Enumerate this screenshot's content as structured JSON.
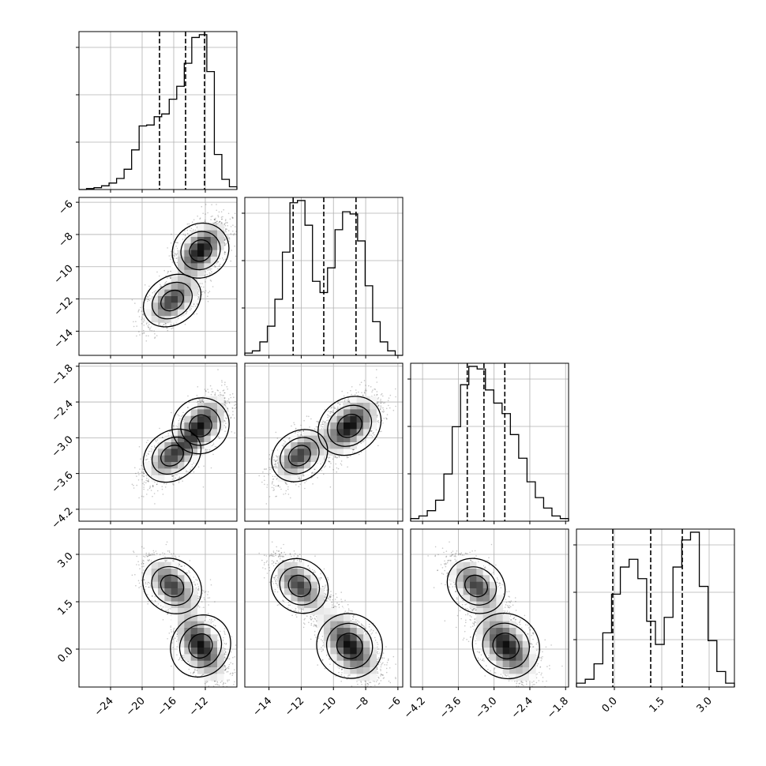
{
  "chart_data": {
    "type": "corner",
    "grid": true,
    "parameters": [
      {
        "range": [
          -28.0,
          -8.0
        ],
        "ticks": [
          -24,
          -20,
          -16,
          -12
        ],
        "tick_labels": [
          "−24",
          "−20",
          "−16",
          "−12"
        ],
        "quantiles": [
          -17.8,
          -14.5,
          -12.1
        ],
        "hist_counts": [
          0,
          1,
          2,
          4,
          7,
          12,
          22,
          43,
          69,
          70,
          79,
          82,
          98,
          112,
          137,
          165,
          168,
          128,
          38,
          11,
          3
        ]
      },
      {
        "range": [
          -15.5,
          -5.7
        ],
        "ticks": [
          -14,
          -12,
          -10,
          -8,
          -6
        ],
        "tick_labels": [
          "−14",
          "−12",
          "−10",
          "−8",
          "−6"
        ],
        "quantiles": [
          -12.5,
          -10.6,
          -8.6
        ],
        "hist_counts": [
          1,
          2,
          6,
          13,
          25,
          46,
          68,
          69,
          58,
          33,
          28,
          39,
          56,
          64,
          63,
          51,
          31,
          15,
          6,
          2,
          0
        ],
        "y_ticks": [
          -6,
          -8,
          -10,
          -12,
          -14
        ],
        "y_tick_labels": [
          "−6",
          "−8",
          "−10",
          "−12",
          "−14"
        ]
      },
      {
        "range": [
          -4.4,
          -1.75
        ],
        "ticks": [
          -4.2,
          -3.6,
          -3.0,
          -2.4,
          -1.8
        ],
        "tick_labels": [
          "−4.2",
          "−3.6",
          "−3.0",
          "−2.4",
          "−1.8"
        ],
        "quantiles": [
          -3.45,
          -3.17,
          -2.82
        ],
        "hist_counts": [
          1,
          2,
          4,
          8,
          18,
          36,
          52,
          59,
          58,
          50,
          45,
          41,
          33,
          24,
          15,
          9,
          5,
          2,
          1
        ],
        "y_ticks": [
          -1.8,
          -2.4,
          -3.0,
          -3.6,
          -4.2
        ],
        "y_tick_labels": [
          "−1.8",
          "−2.4",
          "−3.0",
          "−3.6",
          "−4.2"
        ]
      },
      {
        "range": [
          -1.2,
          3.8
        ],
        "ticks": [
          0.0,
          1.5,
          3.0
        ],
        "tick_labels": [
          "0.0",
          "1.5",
          "3.0"
        ],
        "quantiles": [
          -0.05,
          1.15,
          2.15
        ],
        "hist_counts": [
          1,
          2,
          6,
          14,
          24,
          31,
          33,
          28,
          17,
          11,
          18,
          31,
          38,
          40,
          26,
          12,
          4,
          1
        ],
        "y_ticks": [
          3.0,
          1.5,
          0.0
        ],
        "y_tick_labels": [
          "3.0",
          "1.5",
          "0.0"
        ]
      }
    ],
    "modes": [
      {
        "weight": 0.55,
        "mean": [
          -12.6,
          -9.0,
          -2.8,
          0.1
        ],
        "sd": [
          1.6,
          0.9,
          0.25,
          0.55
        ]
      },
      {
        "weight": 0.45,
        "mean": [
          -16.2,
          -12.1,
          -3.3,
          2.0
        ],
        "sd": [
          1.7,
          0.8,
          0.22,
          0.45
        ]
      }
    ]
  }
}
